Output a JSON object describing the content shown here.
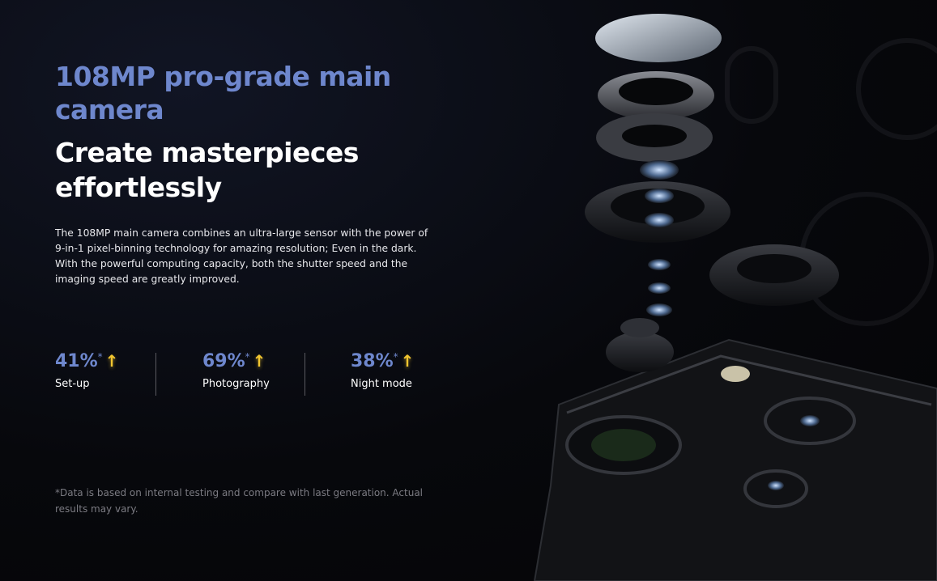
{
  "heading": "108MP pro-grade main camera",
  "subheading": "Create masterpieces effortlessly",
  "description": "The 108MP main camera combines an ultra-large sensor with the power of 9-in-1 pixel-binning technology for amazing resolution; Even in the dark. With the powerful computing capacity, both the shutter speed and the imaging speed are greatly improved.",
  "stats": [
    {
      "value": "41%",
      "asterisk": "*",
      "label": "Set-up",
      "icon": "arrow-up-icon"
    },
    {
      "value": "69%",
      "asterisk": "*",
      "label": "Photography",
      "icon": "arrow-up-icon"
    },
    {
      "value": "38%",
      "asterisk": "*",
      "label": "Night mode",
      "icon": "arrow-up-icon"
    }
  ],
  "arrow_glyph": "🡑",
  "footnote": "*Data is based on internal testing and compare with last generation. Actual results may vary.",
  "colors": {
    "accent": "#6e87cd",
    "arrow": "#f2c630",
    "background": "#06070b"
  }
}
